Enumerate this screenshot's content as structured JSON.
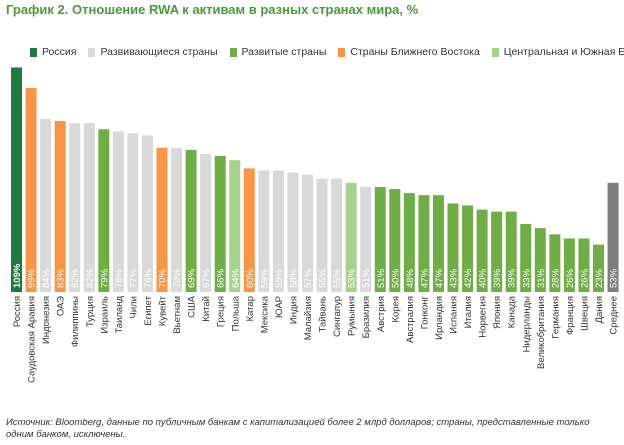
{
  "chart_data": {
    "type": "bar",
    "title": "График 2. Отношение RWA к активам в разных странах мира, %",
    "legend": [
      {
        "name": "Россия",
        "color": "#1d7a3e"
      },
      {
        "name": "Развивающиеся страны",
        "color": "#d9d9d9"
      },
      {
        "name": "Развитые страны",
        "color": "#70ad47"
      },
      {
        "name": "Страны Ближнего Востока",
        "color": "#f79646"
      },
      {
        "name": "Центральная и Южная Европа",
        "color": "#a9d18e"
      }
    ],
    "value_suffix": "%",
    "ylim": [
      0,
      110
    ],
    "categories": [
      "Россия",
      "Саудовская Аравия",
      "Индонезия",
      "ОАЭ",
      "Филиппины",
      "Турция",
      "Израиль",
      "Таиланд",
      "Чили",
      "Египет",
      "Кувейт",
      "Вьетнам",
      "США",
      "Китай",
      "Греция",
      "Польша",
      "Катар",
      "Мексика",
      "ЮАР",
      "Индия",
      "Малайзия",
      "Тайвань",
      "Сингапур",
      "Румыния",
      "Бразилия",
      "Австрия",
      "Корея",
      "Австралия",
      "Гонконг",
      "Ирландия",
      "Испания",
      "Италия",
      "Норвегия",
      "Япония",
      "Канада",
      "Нидерланды",
      "Великобритания",
      "Германия",
      "Франция",
      "Швеция",
      "Дания",
      "Среднее"
    ],
    "values": [
      109,
      99,
      84,
      83,
      82,
      82,
      79,
      78,
      77,
      76,
      70,
      70,
      69,
      67,
      66,
      64,
      60,
      59,
      59,
      58,
      57,
      55,
      55,
      53,
      51,
      51,
      50,
      48,
      47,
      47,
      43,
      42,
      40,
      39,
      39,
      33,
      31,
      28,
      26,
      26,
      23,
      53
    ],
    "groups": [
      "russia",
      "middle_east",
      "developing",
      "middle_east",
      "developing",
      "developing",
      "developed",
      "developing",
      "developing",
      "developing",
      "middle_east",
      "developing",
      "developed",
      "developing",
      "developed",
      "cse_europe",
      "middle_east",
      "developing",
      "developing",
      "developing",
      "developing",
      "developing",
      "developing",
      "cse_europe",
      "developing",
      "developed",
      "developed",
      "developed",
      "developed",
      "developed",
      "developed",
      "developed",
      "developed",
      "developed",
      "developed",
      "developed",
      "developed",
      "developed",
      "developed",
      "developed",
      "developed",
      "average"
    ],
    "group_colors": {
      "russia": "#1d7a3e",
      "developing": "#d9d9d9",
      "developed": "#70ad47",
      "middle_east": "#f79646",
      "cse_europe": "#a9d18e",
      "average": "#7f7f7f"
    }
  },
  "source_note": "Источник: Bloomberg, данные по публичным банкам с капитализацией более 2 млрд долларов; страны, представленные только одним банком, исключены."
}
